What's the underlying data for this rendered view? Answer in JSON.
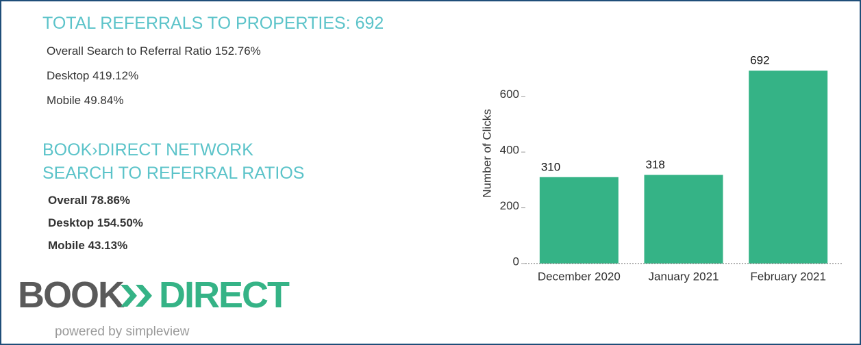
{
  "header": {
    "title": "TOTAL REFERRALS TO PROPERTIES: 692",
    "stats": [
      "Overall Search to Referral Ratio  152.76%",
      "Desktop  419.12%",
      "Mobile  49.84%"
    ]
  },
  "network": {
    "title_lines": [
      "BOOK›DIRECT NETWORK",
      "SEARCH TO REFERRAL RATIOS"
    ],
    "stats": [
      "Overall  78.86%",
      "Desktop  154.50%",
      "Mobile  43.13%"
    ]
  },
  "logo": {
    "left": "BOOK",
    "right": "DIRECT",
    "tagline": "powered by simpleview"
  },
  "chart_data": {
    "type": "bar",
    "ylabel": "Number of Clicks",
    "categories": [
      "December 2020",
      "January 2021",
      "February 2021"
    ],
    "values": [
      310,
      318,
      692
    ],
    "color": "#35b386",
    "ylim": [
      0,
      700
    ],
    "yticks": [
      0,
      200,
      400,
      600
    ]
  }
}
